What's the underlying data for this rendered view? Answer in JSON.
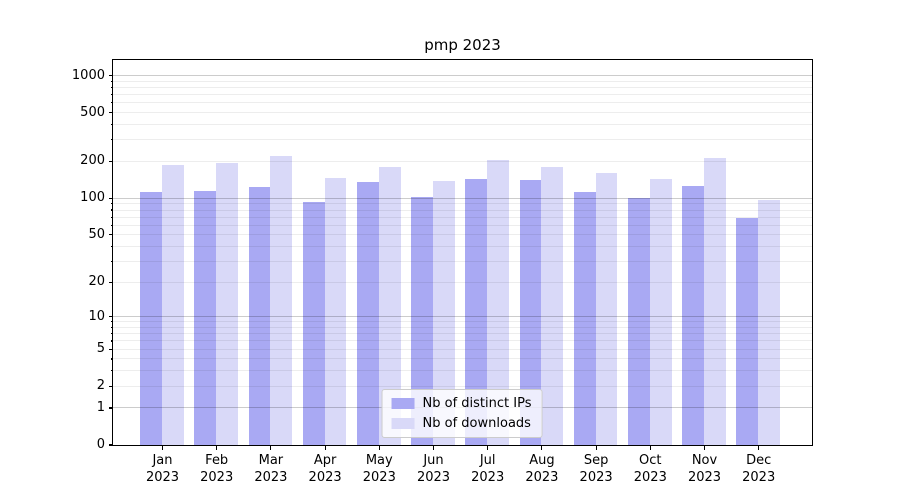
{
  "title": "pmp 2023",
  "colors": {
    "bar_distinct_ips": "#a9a9f3",
    "bar_downloads": "#d9d9f8",
    "grid_major": "rgba(0,0,0,0.20)",
    "grid_minor": "rgba(0,0,0,0.07)",
    "axis_border": "#000000",
    "legend_border": "#cccccc",
    "legend_bg": "rgba(255,255,255,0.8)",
    "text": "#000000"
  },
  "chart_data": {
    "type": "bar",
    "title": "pmp 2023",
    "xlabel": "",
    "ylabel": "",
    "y_scale": "log(1+y)",
    "y_axis_max": 1340,
    "y_ticks": [
      0,
      1,
      2,
      5,
      10,
      20,
      50,
      100,
      200,
      500,
      1000
    ],
    "minor_grid_values": [
      2,
      3,
      4,
      5,
      6,
      7,
      8,
      9,
      20,
      30,
      40,
      50,
      60,
      70,
      80,
      90,
      200,
      300,
      400,
      500,
      600,
      700,
      800,
      900
    ],
    "major_grid_values": [
      1,
      10,
      100,
      1000
    ],
    "grid": true,
    "legend_position": "lower center",
    "x_year": "2023",
    "categories": [
      "Jan",
      "Feb",
      "Mar",
      "Apr",
      "May",
      "Jun",
      "Jul",
      "Aug",
      "Sep",
      "Oct",
      "Nov",
      "Dec"
    ],
    "series": [
      {
        "name": "Nb of distinct IPs",
        "color_key": "bar_distinct_ips",
        "values": [
          112,
          114,
          122,
          92,
          135,
          102,
          142,
          139,
          111,
          99,
          124,
          68
        ]
      },
      {
        "name": "Nb of downloads",
        "color_key": "bar_downloads",
        "values": [
          184,
          194,
          220,
          144,
          177,
          138,
          205,
          178,
          159,
          143,
          210,
          96
        ]
      }
    ]
  }
}
